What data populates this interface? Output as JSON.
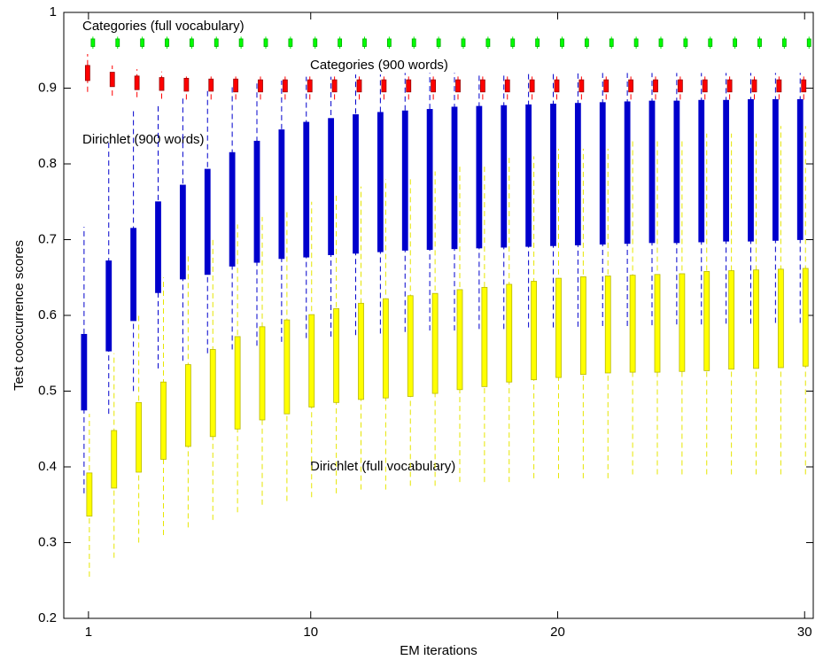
{
  "chart_data": {
    "type": "box",
    "xlabel": "EM iterations",
    "ylabel": "Test cooccurrence scores",
    "x": [
      1,
      2,
      3,
      4,
      5,
      6,
      7,
      8,
      9,
      10,
      11,
      12,
      13,
      14,
      15,
      16,
      17,
      18,
      19,
      20,
      21,
      22,
      23,
      24,
      25,
      26,
      27,
      28,
      29,
      30
    ],
    "xlim": [
      0,
      30.35
    ],
    "xticks": [
      1,
      10,
      20,
      30
    ],
    "ylim": [
      0.2,
      1
    ],
    "yticks": [
      0.2,
      0.3,
      0.4,
      0.5,
      0.6,
      0.7,
      0.8,
      0.9,
      1
    ],
    "series": [
      {
        "name": "Categories (full vocabulary)",
        "color": "#00ff00",
        "q1": [
          0.955,
          0.955,
          0.955,
          0.955,
          0.955,
          0.955,
          0.955,
          0.955,
          0.955,
          0.955,
          0.955,
          0.955,
          0.955,
          0.955,
          0.955,
          0.955,
          0.955,
          0.955,
          0.955,
          0.955,
          0.955,
          0.955,
          0.955,
          0.955,
          0.955,
          0.955,
          0.955,
          0.955,
          0.955,
          0.955
        ],
        "q3": [
          0.965,
          0.965,
          0.965,
          0.965,
          0.965,
          0.965,
          0.965,
          0.965,
          0.965,
          0.965,
          0.965,
          0.965,
          0.965,
          0.965,
          0.965,
          0.965,
          0.965,
          0.965,
          0.965,
          0.965,
          0.965,
          0.965,
          0.965,
          0.965,
          0.965,
          0.965,
          0.965,
          0.965,
          0.965,
          0.965
        ],
        "low": [
          0.952,
          0.952,
          0.952,
          0.952,
          0.952,
          0.952,
          0.952,
          0.952,
          0.952,
          0.952,
          0.952,
          0.952,
          0.952,
          0.952,
          0.952,
          0.952,
          0.952,
          0.952,
          0.952,
          0.952,
          0.952,
          0.952,
          0.952,
          0.952,
          0.952,
          0.952,
          0.952,
          0.952,
          0.952,
          0.952
        ],
        "high": [
          0.968,
          0.968,
          0.968,
          0.968,
          0.968,
          0.968,
          0.968,
          0.968,
          0.968,
          0.968,
          0.968,
          0.968,
          0.968,
          0.968,
          0.968,
          0.968,
          0.968,
          0.968,
          0.968,
          0.968,
          0.968,
          0.968,
          0.968,
          0.968,
          0.968,
          0.968,
          0.968,
          0.968,
          0.968,
          0.968
        ]
      },
      {
        "name": "Categories (900 words)",
        "color": "#ff0000",
        "q1": [
          0.91,
          0.902,
          0.898,
          0.897,
          0.896,
          0.896,
          0.895,
          0.895,
          0.895,
          0.895,
          0.895,
          0.895,
          0.895,
          0.895,
          0.895,
          0.895,
          0.895,
          0.895,
          0.895,
          0.895,
          0.895,
          0.895,
          0.895,
          0.895,
          0.895,
          0.895,
          0.895,
          0.895,
          0.895,
          0.895
        ],
        "q3": [
          0.93,
          0.921,
          0.916,
          0.914,
          0.913,
          0.912,
          0.912,
          0.911,
          0.911,
          0.911,
          0.911,
          0.911,
          0.911,
          0.911,
          0.911,
          0.911,
          0.911,
          0.911,
          0.911,
          0.911,
          0.911,
          0.911,
          0.911,
          0.911,
          0.911,
          0.911,
          0.911,
          0.911,
          0.911,
          0.911
        ],
        "low": [
          0.895,
          0.89,
          0.888,
          0.886,
          0.885,
          0.885,
          0.885,
          0.885,
          0.885,
          0.885,
          0.885,
          0.885,
          0.885,
          0.885,
          0.885,
          0.885,
          0.885,
          0.885,
          0.885,
          0.885,
          0.885,
          0.885,
          0.885,
          0.885,
          0.885,
          0.885,
          0.885,
          0.885,
          0.885,
          0.885
        ],
        "high": [
          0.945,
          0.93,
          0.925,
          0.922,
          0.92,
          0.92,
          0.92,
          0.92,
          0.92,
          0.92,
          0.92,
          0.92,
          0.92,
          0.92,
          0.92,
          0.92,
          0.92,
          0.92,
          0.92,
          0.92,
          0.92,
          0.92,
          0.92,
          0.92,
          0.92,
          0.92,
          0.92,
          0.92,
          0.92,
          0.92
        ]
      },
      {
        "name": "Dirichlet (900 words)",
        "color": "#0000cc",
        "q1": [
          0.475,
          0.553,
          0.593,
          0.63,
          0.648,
          0.654,
          0.665,
          0.67,
          0.675,
          0.677,
          0.68,
          0.682,
          0.684,
          0.686,
          0.687,
          0.688,
          0.689,
          0.69,
          0.691,
          0.692,
          0.693,
          0.694,
          0.695,
          0.696,
          0.696,
          0.697,
          0.698,
          0.698,
          0.699,
          0.7
        ],
        "q3": [
          0.575,
          0.672,
          0.715,
          0.75,
          0.772,
          0.793,
          0.815,
          0.83,
          0.845,
          0.855,
          0.86,
          0.865,
          0.868,
          0.87,
          0.872,
          0.875,
          0.876,
          0.877,
          0.878,
          0.879,
          0.88,
          0.881,
          0.882,
          0.883,
          0.883,
          0.884,
          0.884,
          0.885,
          0.885,
          0.885
        ],
        "low": [
          0.365,
          0.47,
          0.5,
          0.53,
          0.54,
          0.55,
          0.555,
          0.56,
          0.565,
          0.57,
          0.572,
          0.574,
          0.576,
          0.578,
          0.58,
          0.58,
          0.582,
          0.582,
          0.584,
          0.584,
          0.585,
          0.586,
          0.586,
          0.587,
          0.588,
          0.588,
          0.589,
          0.589,
          0.59,
          0.59
        ],
        "high": [
          0.717,
          0.83,
          0.87,
          0.88,
          0.89,
          0.9,
          0.905,
          0.91,
          0.91,
          0.915,
          0.915,
          0.918,
          0.918,
          0.92,
          0.92,
          0.92,
          0.92,
          0.92,
          0.92,
          0.92,
          0.92,
          0.92,
          0.92,
          0.92,
          0.92,
          0.92,
          0.92,
          0.92,
          0.92,
          0.92
        ]
      },
      {
        "name": "Dirichlet (full vocabulary)",
        "color": "#ffff00",
        "q1": [
          0.335,
          0.372,
          0.393,
          0.41,
          0.427,
          0.44,
          0.45,
          0.462,
          0.47,
          0.479,
          0.485,
          0.489,
          0.491,
          0.493,
          0.497,
          0.502,
          0.506,
          0.512,
          0.515,
          0.518,
          0.522,
          0.524,
          0.525,
          0.525,
          0.526,
          0.527,
          0.529,
          0.53,
          0.531,
          0.533
        ],
        "q3": [
          0.392,
          0.448,
          0.485,
          0.512,
          0.535,
          0.555,
          0.572,
          0.585,
          0.594,
          0.601,
          0.609,
          0.616,
          0.622,
          0.626,
          0.629,
          0.634,
          0.637,
          0.641,
          0.645,
          0.649,
          0.651,
          0.652,
          0.653,
          0.654,
          0.655,
          0.658,
          0.659,
          0.66,
          0.661,
          0.662
        ],
        "low": [
          0.255,
          0.28,
          0.3,
          0.31,
          0.32,
          0.33,
          0.34,
          0.35,
          0.355,
          0.36,
          0.365,
          0.37,
          0.37,
          0.375,
          0.375,
          0.38,
          0.38,
          0.38,
          0.385,
          0.385,
          0.385,
          0.385,
          0.39,
          0.39,
          0.39,
          0.39,
          0.39,
          0.39,
          0.39,
          0.39
        ],
        "high": [
          0.47,
          0.55,
          0.6,
          0.65,
          0.68,
          0.7,
          0.72,
          0.73,
          0.74,
          0.75,
          0.76,
          0.77,
          0.78,
          0.78,
          0.79,
          0.8,
          0.8,
          0.81,
          0.81,
          0.82,
          0.82,
          0.82,
          0.83,
          0.83,
          0.83,
          0.84,
          0.84,
          0.84,
          0.85,
          0.85
        ]
      }
    ]
  }
}
